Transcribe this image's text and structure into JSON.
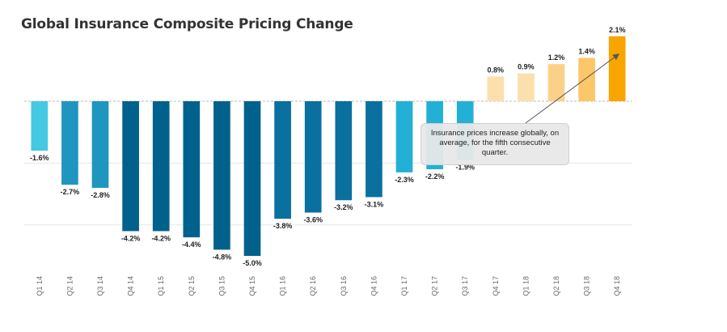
{
  "chart_data": {
    "type": "bar",
    "title": "Global Insurance Composite Pricing Change",
    "xlabel": "",
    "ylabel": "",
    "ylim": [
      -5.4,
      2.3
    ],
    "grid": true,
    "categories": [
      "Q1 14",
      "Q2 14",
      "Q3 14",
      "Q4 14",
      "Q1 15",
      "Q2 15",
      "Q3 15",
      "Q4 15",
      "Q1 16",
      "Q2 16",
      "Q3 16",
      "Q4 16",
      "Q1 17",
      "Q2 17",
      "Q3 17",
      "Q4 17",
      "Q1 18",
      "Q2 18",
      "Q3 18",
      "Q4 18"
    ],
    "values": [
      -1.6,
      -2.7,
      -2.8,
      -4.2,
      -4.2,
      -4.4,
      -4.8,
      -5.0,
      -3.8,
      -3.6,
      -3.2,
      -3.1,
      -2.3,
      -2.2,
      -1.9,
      0.8,
      0.9,
      1.2,
      1.4,
      2.1
    ],
    "value_labels": [
      "-1.6%",
      "-2.7%",
      "-2.8%",
      "-4.2%",
      "-4.2%",
      "-4.4%",
      "-4.8%",
      "-5.0%",
      "-3.8%",
      "-3.6%",
      "-3.2%",
      "-3.1%",
      "-2.3%",
      "-2.2%",
      "-1.9%",
      "0.8%",
      "0.9%",
      "1.2%",
      "1.4%",
      "2.1%"
    ],
    "colors": [
      "#45c8e2",
      "#1f96c0",
      "#1f96c0",
      "#00628c",
      "#00628c",
      "#00628c",
      "#00628c",
      "#00628c",
      "#0a70a0",
      "#0a70a0",
      "#0a70a0",
      "#0a70a0",
      "#22b0d6",
      "#22b0d6",
      "#22b0d6",
      "#fbe0ae",
      "#fbe0ae",
      "#fbd189",
      "#fbc768",
      "#f8a500"
    ],
    "annotation": {
      "text": "Insurance prices increase globally, on average, for the fifth consecutive quarter.",
      "target_category": "Q4 18"
    }
  }
}
